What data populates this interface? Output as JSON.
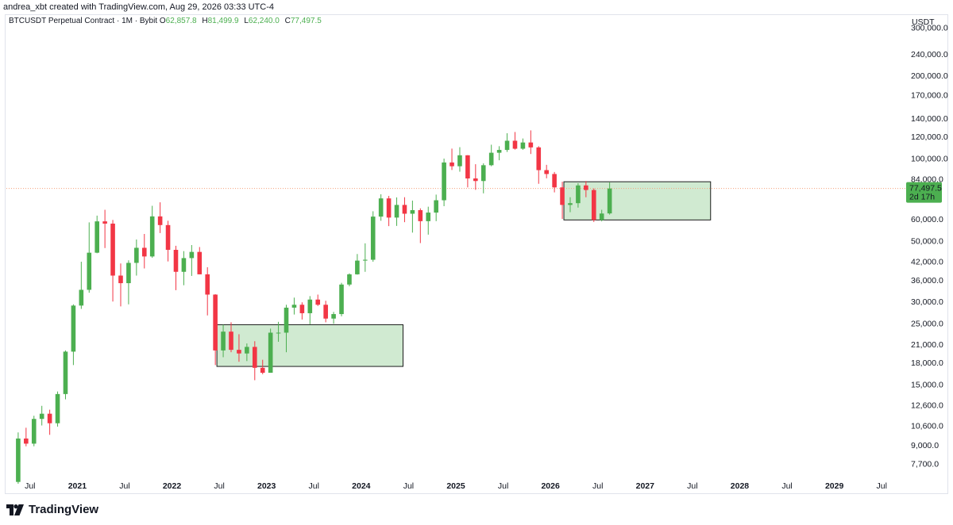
{
  "header": {
    "caption": "andrea_xbt created with TradingView.com, Aug 29, 2026 03:33 UTC-4"
  },
  "legend": {
    "title": "BTCUSDT Perpetual Contract · 1M · Bybit",
    "o_label": "O",
    "o_value": "62,857.8",
    "h_label": "H",
    "h_value": "81,499.9",
    "l_label": "L",
    "l_value": "62,240.0",
    "c_label": "C",
    "c_value": "77,497.5"
  },
  "price_axis": {
    "currency": "USDT",
    "ticks": [
      "300,000.0",
      "240,000.0",
      "200,000.0",
      "170,000.0",
      "140,000.0",
      "120,000.0",
      "100,000.0",
      "84,000.0",
      "60,000.0",
      "50,000.0",
      "42,000.0",
      "36,000.0",
      "30,000.0",
      "25,000.0",
      "21,000.0",
      "18,000.0",
      "15,000.0",
      "12,600.0",
      "10,600.0",
      "9,000.0",
      "7,700.0"
    ],
    "last_price": "77,497.5",
    "countdown": "2d 17h"
  },
  "time_axis": {
    "ticks": [
      {
        "label": "Jul",
        "bold": false,
        "t": 2020.5
      },
      {
        "label": "2021",
        "bold": true,
        "t": 2021.0
      },
      {
        "label": "Jul",
        "bold": false,
        "t": 2021.5
      },
      {
        "label": "2022",
        "bold": true,
        "t": 2022.0
      },
      {
        "label": "Jul",
        "bold": false,
        "t": 2022.5
      },
      {
        "label": "2023",
        "bold": true,
        "t": 2023.0
      },
      {
        "label": "Jul",
        "bold": false,
        "t": 2023.5
      },
      {
        "label": "2024",
        "bold": true,
        "t": 2024.0
      },
      {
        "label": "Jul",
        "bold": false,
        "t": 2024.5
      },
      {
        "label": "2025",
        "bold": true,
        "t": 2025.0
      },
      {
        "label": "Jul",
        "bold": false,
        "t": 2025.5
      },
      {
        "label": "2026",
        "bold": true,
        "t": 2026.0
      },
      {
        "label": "Jul",
        "bold": false,
        "t": 2026.5
      },
      {
        "label": "2027",
        "bold": true,
        "t": 2027.0
      },
      {
        "label": "Jul",
        "bold": false,
        "t": 2027.5
      },
      {
        "label": "2028",
        "bold": true,
        "t": 2028.0
      },
      {
        "label": "Jul",
        "bold": false,
        "t": 2028.5
      },
      {
        "label": "2029",
        "bold": true,
        "t": 2029.0
      },
      {
        "label": "Jul",
        "bold": false,
        "t": 2029.5
      }
    ]
  },
  "footer": {
    "brand": "TradingView"
  },
  "colors": {
    "up": "#4caf50",
    "down": "#f23645",
    "zone_fill": "#c8e6c9",
    "zone_border": "#1b1b1b",
    "price_line": "#f5a07a"
  },
  "chart_data": {
    "type": "candlestick",
    "title": "BTCUSDT Perpetual Contract · 1M · Bybit",
    "y_scale": "log",
    "ylim": [
      6900,
      330000
    ],
    "xlim": [
      "2020-04",
      "2029-09"
    ],
    "candles": [
      {
        "t": "2020-05",
        "o": 6600,
        "h": 10000,
        "l": 6500,
        "c": 9500
      },
      {
        "t": "2020-06",
        "o": 9500,
        "h": 10400,
        "l": 8900,
        "c": 9100
      },
      {
        "t": "2020-07",
        "o": 9100,
        "h": 11500,
        "l": 8900,
        "c": 11200
      },
      {
        "t": "2020-08",
        "o": 11200,
        "h": 12500,
        "l": 10600,
        "c": 11700
      },
      {
        "t": "2020-09",
        "o": 11700,
        "h": 12100,
        "l": 9800,
        "c": 10800
      },
      {
        "t": "2020-10",
        "o": 10800,
        "h": 14100,
        "l": 10500,
        "c": 13800
      },
      {
        "t": "2020-11",
        "o": 13800,
        "h": 19900,
        "l": 13200,
        "c": 19700
      },
      {
        "t": "2020-12",
        "o": 19700,
        "h": 29300,
        "l": 17600,
        "c": 29000
      },
      {
        "t": "2021-01",
        "o": 29000,
        "h": 41900,
        "l": 28200,
        "c": 33100
      },
      {
        "t": "2021-02",
        "o": 33100,
        "h": 58300,
        "l": 32300,
        "c": 45200
      },
      {
        "t": "2021-03",
        "o": 45200,
        "h": 61700,
        "l": 45000,
        "c": 58800
      },
      {
        "t": "2021-04",
        "o": 58800,
        "h": 64800,
        "l": 47000,
        "c": 57700
      },
      {
        "t": "2021-05",
        "o": 57700,
        "h": 59500,
        "l": 30000,
        "c": 37300
      },
      {
        "t": "2021-06",
        "o": 37300,
        "h": 41300,
        "l": 28800,
        "c": 35000
      },
      {
        "t": "2021-07",
        "o": 35000,
        "h": 42400,
        "l": 29300,
        "c": 41500
      },
      {
        "t": "2021-08",
        "o": 41500,
        "h": 50500,
        "l": 37300,
        "c": 47100
      },
      {
        "t": "2021-09",
        "o": 47100,
        "h": 52900,
        "l": 39600,
        "c": 43800
      },
      {
        "t": "2021-10",
        "o": 43800,
        "h": 67000,
        "l": 43300,
        "c": 61300
      },
      {
        "t": "2021-11",
        "o": 61300,
        "h": 69000,
        "l": 53300,
        "c": 57000
      },
      {
        "t": "2021-12",
        "o": 57000,
        "h": 59100,
        "l": 42000,
        "c": 46300
      },
      {
        "t": "2022-01",
        "o": 46300,
        "h": 47900,
        "l": 33000,
        "c": 38500
      },
      {
        "t": "2022-02",
        "o": 38500,
        "h": 45800,
        "l": 34400,
        "c": 43200
      },
      {
        "t": "2022-03",
        "o": 43200,
        "h": 48200,
        "l": 37200,
        "c": 45500
      },
      {
        "t": "2022-04",
        "o": 45500,
        "h": 47400,
        "l": 37700,
        "c": 37700
      },
      {
        "t": "2022-05",
        "o": 37700,
        "h": 40000,
        "l": 26700,
        "c": 31800
      },
      {
        "t": "2022-06",
        "o": 31800,
        "h": 31900,
        "l": 17600,
        "c": 19900
      },
      {
        "t": "2022-07",
        "o": 19900,
        "h": 24700,
        "l": 18800,
        "c": 23300
      },
      {
        "t": "2022-08",
        "o": 23300,
        "h": 25200,
        "l": 19600,
        "c": 20000
      },
      {
        "t": "2022-09",
        "o": 20000,
        "h": 22800,
        "l": 18100,
        "c": 19400
      },
      {
        "t": "2022-10",
        "o": 19400,
        "h": 21100,
        "l": 18200,
        "c": 20500
      },
      {
        "t": "2022-11",
        "o": 20500,
        "h": 21500,
        "l": 15500,
        "c": 17200
      },
      {
        "t": "2022-12",
        "o": 17200,
        "h": 18400,
        "l": 16300,
        "c": 16500
      },
      {
        "t": "2023-01",
        "o": 16500,
        "h": 23900,
        "l": 16500,
        "c": 23100
      },
      {
        "t": "2023-02",
        "o": 23100,
        "h": 25300,
        "l": 21400,
        "c": 23100
      },
      {
        "t": "2023-03",
        "o": 23100,
        "h": 29200,
        "l": 19600,
        "c": 28500
      },
      {
        "t": "2023-04",
        "o": 28500,
        "h": 31000,
        "l": 26900,
        "c": 29200
      },
      {
        "t": "2023-05",
        "o": 29200,
        "h": 29800,
        "l": 25800,
        "c": 27200
      },
      {
        "t": "2023-06",
        "o": 27200,
        "h": 31400,
        "l": 24800,
        "c": 30500
      },
      {
        "t": "2023-07",
        "o": 30500,
        "h": 31800,
        "l": 28900,
        "c": 29200
      },
      {
        "t": "2023-08",
        "o": 29200,
        "h": 30200,
        "l": 25200,
        "c": 26000
      },
      {
        "t": "2023-09",
        "o": 26000,
        "h": 27500,
        "l": 24900,
        "c": 27000
      },
      {
        "t": "2023-10",
        "o": 27000,
        "h": 35100,
        "l": 26500,
        "c": 34600
      },
      {
        "t": "2023-11",
        "o": 34600,
        "h": 38000,
        "l": 34100,
        "c": 37700
      },
      {
        "t": "2023-12",
        "o": 37700,
        "h": 44700,
        "l": 37600,
        "c": 42300
      },
      {
        "t": "2024-01",
        "o": 42300,
        "h": 48900,
        "l": 38500,
        "c": 42600
      },
      {
        "t": "2024-02",
        "o": 42600,
        "h": 64000,
        "l": 41900,
        "c": 61200
      },
      {
        "t": "2024-03",
        "o": 61200,
        "h": 73800,
        "l": 59100,
        "c": 71300
      },
      {
        "t": "2024-04",
        "o": 71300,
        "h": 72800,
        "l": 56500,
        "c": 60700
      },
      {
        "t": "2024-05",
        "o": 60700,
        "h": 71900,
        "l": 56600,
        "c": 67500
      },
      {
        "t": "2024-06",
        "o": 67500,
        "h": 72000,
        "l": 58400,
        "c": 62700
      },
      {
        "t": "2024-07",
        "o": 62700,
        "h": 70000,
        "l": 53500,
        "c": 64600
      },
      {
        "t": "2024-08",
        "o": 64600,
        "h": 65600,
        "l": 49000,
        "c": 58900
      },
      {
        "t": "2024-09",
        "o": 58900,
        "h": 66500,
        "l": 52600,
        "c": 63300
      },
      {
        "t": "2024-10",
        "o": 63300,
        "h": 73600,
        "l": 58900,
        "c": 70200
      },
      {
        "t": "2024-11",
        "o": 70200,
        "h": 99600,
        "l": 66800,
        "c": 96400
      },
      {
        "t": "2024-12",
        "o": 96400,
        "h": 108300,
        "l": 90500,
        "c": 93400
      },
      {
        "t": "2025-01",
        "o": 93400,
        "h": 109600,
        "l": 89200,
        "c": 102400
      },
      {
        "t": "2025-02",
        "o": 102400,
        "h": 102500,
        "l": 78200,
        "c": 84300
      },
      {
        "t": "2025-03",
        "o": 84300,
        "h": 95000,
        "l": 76600,
        "c": 82500
      },
      {
        "t": "2025-04",
        "o": 82500,
        "h": 95700,
        "l": 74400,
        "c": 94200
      },
      {
        "t": "2025-05",
        "o": 94200,
        "h": 111900,
        "l": 93400,
        "c": 104600
      },
      {
        "t": "2025-06",
        "o": 104600,
        "h": 110500,
        "l": 98200,
        "c": 107100
      },
      {
        "t": "2025-07",
        "o": 107100,
        "h": 123200,
        "l": 105300,
        "c": 115700
      },
      {
        "t": "2025-08",
        "o": 115700,
        "h": 124500,
        "l": 107400,
        "c": 108200
      },
      {
        "t": "2025-09",
        "o": 108200,
        "h": 117900,
        "l": 107200,
        "c": 114000
      },
      {
        "t": "2025-10",
        "o": 114000,
        "h": 126200,
        "l": 103500,
        "c": 109400
      },
      {
        "t": "2025-11",
        "o": 109400,
        "h": 110500,
        "l": 80600,
        "c": 90400
      },
      {
        "t": "2025-12",
        "o": 90400,
        "h": 94500,
        "l": 84400,
        "c": 87500
      },
      {
        "t": "2026-01",
        "o": 87500,
        "h": 89000,
        "l": 75000,
        "c": 78200
      },
      {
        "t": "2026-02",
        "o": 78200,
        "h": 82000,
        "l": 60000,
        "c": 67500
      },
      {
        "t": "2026-03",
        "o": 67500,
        "h": 72000,
        "l": 63500,
        "c": 68500
      },
      {
        "t": "2026-04",
        "o": 68500,
        "h": 81000,
        "l": 66000,
        "c": 79500
      },
      {
        "t": "2026-05",
        "o": 79500,
        "h": 82500,
        "l": 72000,
        "c": 76500
      },
      {
        "t": "2026-06",
        "o": 76500,
        "h": 77500,
        "l": 58500,
        "c": 59500
      },
      {
        "t": "2026-07",
        "o": 59500,
        "h": 64800,
        "l": 58800,
        "c": 62800
      },
      {
        "t": "2026-08",
        "o": 62857.8,
        "h": 81499.9,
        "l": 62240.0,
        "c": 77497.5
      }
    ],
    "zones": [
      {
        "from": "2022-07",
        "to": "2024-06",
        "high": 24700,
        "low": 17400
      },
      {
        "from": "2026-03",
        "to": "2027-09",
        "high": 82000,
        "low": 59500
      }
    ],
    "last_price": 77497.5
  }
}
